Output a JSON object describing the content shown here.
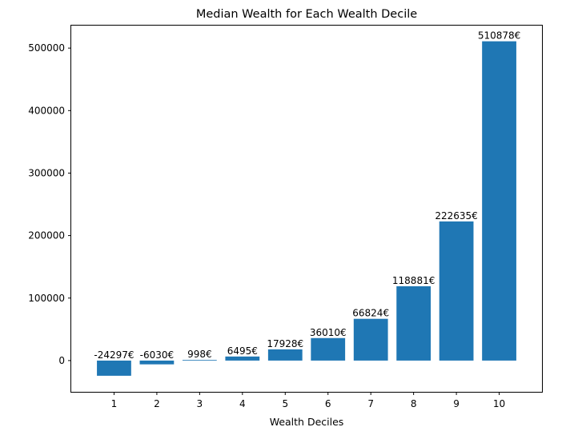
{
  "chart_data": {
    "type": "bar",
    "title": "Median Wealth for Each Wealth Decile",
    "xlabel": "Wealth Deciles",
    "ylabel": "",
    "categories": [
      "1",
      "2",
      "3",
      "4",
      "5",
      "6",
      "7",
      "8",
      "9",
      "10"
    ],
    "values": [
      -24297,
      -6030,
      998,
      6495,
      17928,
      36010,
      66824,
      118881,
      222635,
      510878
    ],
    "value_labels": [
      "-24297€",
      "-6030€",
      "998€",
      "6495€",
      "17928€",
      "36010€",
      "66824€",
      "118881€",
      "222635€",
      "510878€"
    ],
    "yticks": [
      0,
      100000,
      200000,
      300000,
      400000,
      500000
    ],
    "ytick_labels": [
      "0",
      "100000",
      "200000",
      "300000",
      "400000",
      "500000"
    ],
    "ylim": [
      -50000,
      536000
    ],
    "grid": false,
    "bar_color": "#1f77b4"
  }
}
